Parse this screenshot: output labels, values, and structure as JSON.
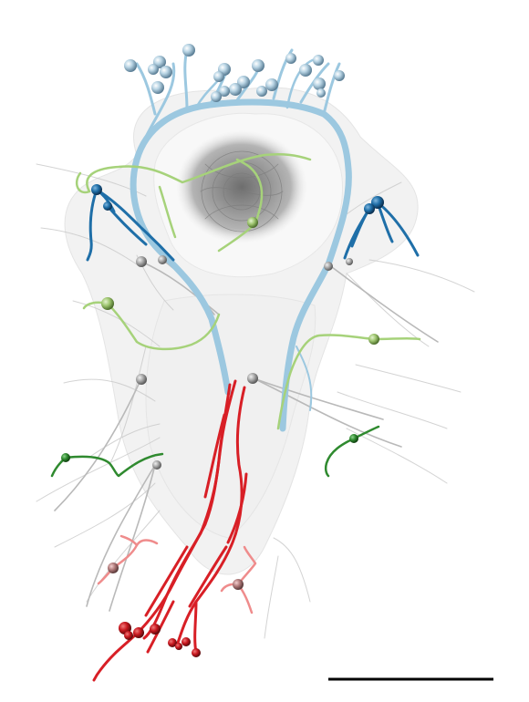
{
  "figure": {
    "kind": "3d-neuron-reconstruction-render",
    "scale_bar_label": ""
  },
  "colors": {
    "background": "#ffffff",
    "tissue": "#d9d9d9",
    "lumen": "#9e9e9e",
    "light_blue": "#9cc8e0",
    "dark_blue": "#1f6fa8",
    "light_green": "#a6d27a",
    "dark_green": "#2f8a2f",
    "red": "#d81f26",
    "pink": "#ef8c8c",
    "gray_soma": "#a8a8a8",
    "scale_bar": "#000000"
  }
}
